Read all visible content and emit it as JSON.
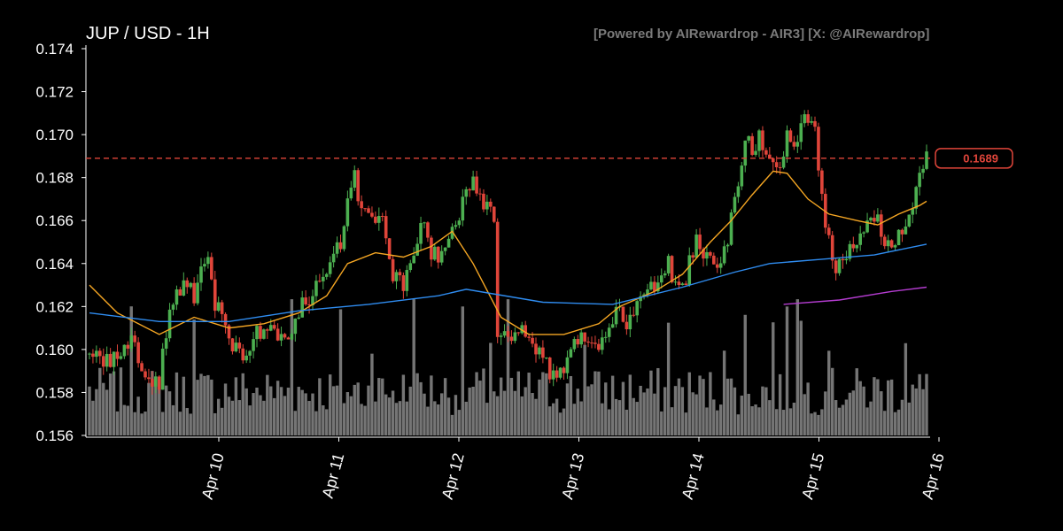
{
  "header": {
    "title": "JUP / USD - 1H",
    "credit": "[Powered by AIRewardrop - AIR3] [X: @AIRewardrop]"
  },
  "chart_data": {
    "type": "candlestick",
    "ylim": [
      0.156,
      0.174
    ],
    "y_ticks": [
      "0.174",
      "0.172",
      "0.170",
      "0.168",
      "0.166",
      "0.164",
      "0.162",
      "0.160",
      "0.158",
      "0.156"
    ],
    "x_ticks": [
      "Apr 10",
      "Apr 11",
      "Apr 12",
      "Apr 13",
      "Apr 14",
      "Apr 15",
      "Apr 16"
    ],
    "current_price": 0.1689,
    "current_price_label": "0.1689",
    "colors": {
      "up": "#4caf50",
      "down": "#e0453a",
      "ma_fast": "#f5a623",
      "ma_mid": "#2f8cf0",
      "ma_slow": "#b43cd0",
      "price_line": "#e0453a",
      "volume": "#8a8a8a"
    },
    "series": [
      {
        "name": "",
        "kind": "candles",
        "note": "hourly OHLC generated from close path"
      },
      {
        "name": "",
        "kind": "ma",
        "points": [
          [
            0,
            0.163
          ],
          [
            8,
            0.1617
          ],
          [
            20,
            0.1607
          ],
          [
            30,
            0.1615
          ],
          [
            40,
            0.161
          ],
          [
            50,
            0.1612
          ],
          [
            60,
            0.1617
          ],
          [
            68,
            0.1625
          ],
          [
            74,
            0.164
          ],
          [
            82,
            0.1645
          ],
          [
            90,
            0.1643
          ],
          [
            98,
            0.1648
          ],
          [
            104,
            0.1655
          ],
          [
            110,
            0.164
          ],
          [
            118,
            0.1615
          ],
          [
            126,
            0.1607
          ],
          [
            136,
            0.1607
          ],
          [
            146,
            0.1612
          ],
          [
            152,
            0.162
          ],
          [
            162,
            0.1627
          ],
          [
            170,
            0.1635
          ],
          [
            178,
            0.165
          ],
          [
            184,
            0.166
          ],
          [
            190,
            0.1672
          ],
          [
            196,
            0.1683
          ],
          [
            200,
            0.1682
          ],
          [
            206,
            0.167
          ],
          [
            212,
            0.1663
          ],
          [
            220,
            0.166
          ],
          [
            226,
            0.1658
          ],
          [
            232,
            0.1663
          ],
          [
            238,
            0.1667
          ],
          [
            240,
            0.1669
          ]
        ]
      },
      {
        "name": "",
        "kind": "ma",
        "points": [
          [
            0,
            0.1617
          ],
          [
            20,
            0.1613
          ],
          [
            40,
            0.1613
          ],
          [
            60,
            0.1618
          ],
          [
            80,
            0.1621
          ],
          [
            100,
            0.1625
          ],
          [
            108,
            0.1628
          ],
          [
            130,
            0.1622
          ],
          [
            150,
            0.1621
          ],
          [
            170,
            0.1629
          ],
          [
            185,
            0.1636
          ],
          [
            195,
            0.164
          ],
          [
            210,
            0.1642
          ],
          [
            225,
            0.1644
          ],
          [
            240,
            0.1649
          ]
        ]
      },
      {
        "name": "",
        "kind": "ma",
        "points": [
          [
            199,
            0.1621
          ],
          [
            215,
            0.1623
          ],
          [
            230,
            0.1627
          ],
          [
            240,
            0.1629
          ]
        ]
      }
    ]
  }
}
